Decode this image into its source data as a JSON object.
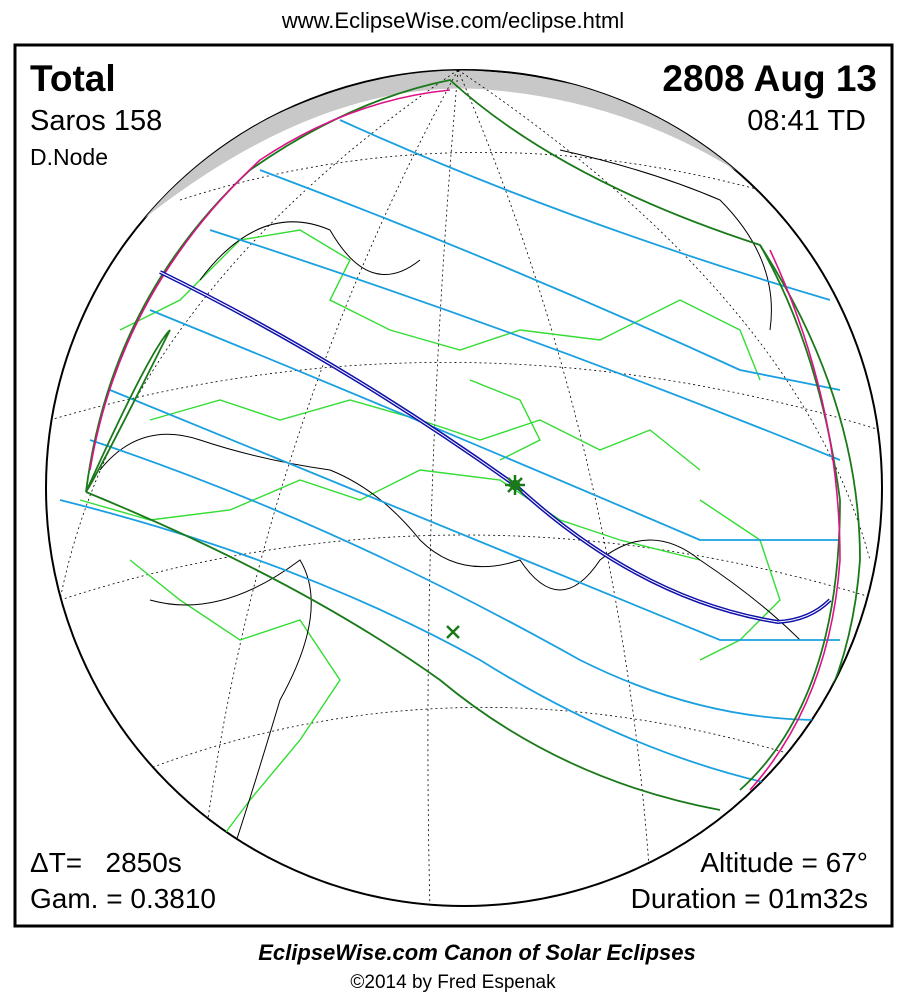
{
  "header": {
    "url": "www.EclipseWise.com/eclipse.html"
  },
  "panel": {
    "eclipse_type": "Total",
    "saros": "Saros 158",
    "node": "D.Node",
    "date": "2808 Aug 13",
    "time": "08:41 TD",
    "delta_t": "ΔT=   2850s",
    "gamma": "Gam. = 0.3810",
    "altitude": "Altitude = 67°",
    "duration": "Duration = 01m32s"
  },
  "footer": {
    "title": "EclipseWise.com Canon of Solar Eclipses",
    "copyright": "©2014 by Fred Espenak"
  }
}
